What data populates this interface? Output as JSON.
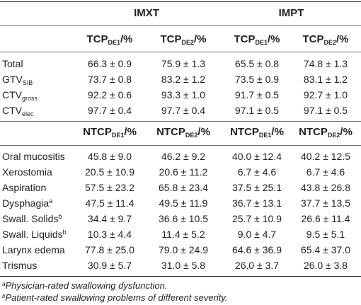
{
  "groups": [
    "IMXT",
    "IMPT"
  ],
  "tcp_header": [
    {
      "main": "TCP",
      "sub": "DE1",
      "tail": "/%"
    },
    {
      "main": "TCP",
      "sub": "DE2",
      "tail": "/%"
    },
    {
      "main": "TCP",
      "sub": "DE1",
      "tail": "/%"
    },
    {
      "main": "TCP",
      "sub": "DE2",
      "tail": "/%"
    }
  ],
  "tcp_rows": [
    {
      "label": "Total",
      "label_sub": "",
      "label_sup": "",
      "values": [
        "66.3 ± 0.9",
        "75.9 ± 1.3",
        "65.5 ± 0.8",
        "74.8 ± 1.3"
      ]
    },
    {
      "label": "GTV",
      "label_sub": "SIB",
      "label_sup": "",
      "values": [
        "73.7 ± 0.8",
        "83.2 ± 1.2",
        "73.5 ± 0.9",
        "83.1 ± 1.2"
      ]
    },
    {
      "label": "CTV",
      "label_sub": "gross",
      "label_sup": "",
      "values": [
        "92.2 ± 0.6",
        "93.3 ± 1.0",
        "91.7 ± 0.5",
        "92.7 ± 1.0"
      ]
    },
    {
      "label": "CTV",
      "label_sub": "elec",
      "label_sup": "",
      "values": [
        "97.7 ± 0.4",
        "97.7 ± 0.4",
        "97.1 ± 0.5",
        "97.1 ± 0.5"
      ]
    }
  ],
  "ntcp_header": [
    {
      "main": "NTCP",
      "sub": "DE1",
      "tail": "/%"
    },
    {
      "main": "NTCP",
      "sub": "DE2",
      "tail": "/%"
    },
    {
      "main": "NTCP",
      "sub": "DE1",
      "tail": "/%"
    },
    {
      "main": "NTCP",
      "sub": "DE2",
      "tail": "/%"
    }
  ],
  "ntcp_rows": [
    {
      "label": "Oral mucositis",
      "label_sub": "",
      "label_sup": "",
      "values": [
        "45.8 ± 9.0",
        "46.2 ± 9.2",
        "40.0 ± 12.4",
        "40.2 ± 12.5"
      ]
    },
    {
      "label": "Xerostomia",
      "label_sub": "",
      "label_sup": "",
      "values": [
        "20.5 ± 10.9",
        "20.6 ± 11.2",
        "6.7 ± 4.6",
        "6.7 ± 4.6"
      ]
    },
    {
      "label": "Aspiration",
      "label_sub": "",
      "label_sup": "",
      "values": [
        "57.5 ± 23.2",
        "65.8 ± 23.4",
        "37.5 ± 25.1",
        "43.8 ± 26.8"
      ]
    },
    {
      "label": "Dysphagia",
      "label_sub": "",
      "label_sup": "a",
      "values": [
        "47.5 ± 11.4",
        "49.5 ± 11.9",
        "36.7 ± 13.1",
        "37.7 ± 13.5"
      ]
    },
    {
      "label": "Swall. Solids",
      "label_sub": "",
      "label_sup": "b",
      "values": [
        "34.4 ± 9.7",
        "36.6 ± 10.5",
        "25.7 ± 10.9",
        "26.6 ± 11.4"
      ]
    },
    {
      "label": "Swall. Liquids",
      "label_sub": "",
      "label_sup": "b",
      "values": [
        "10.3 ± 4.4",
        "11.4 ± 5.2",
        "9.0 ± 4.7",
        "9.5 ± 5.1"
      ]
    },
    {
      "label": "Larynx edema",
      "label_sub": "",
      "label_sup": "",
      "values": [
        "77.8 ± 25.0",
        "79.0 ± 24.9",
        "64.6 ± 36.9",
        "65.4 ± 37.0"
      ]
    },
    {
      "label": "Trismus",
      "label_sub": "",
      "label_sup": "",
      "values": [
        "30.9 ± 5.7",
        "31.0 ± 5.8",
        "26.0 ± 3.7",
        "26.0 ± 3.8"
      ]
    }
  ],
  "footnotes": [
    {
      "mark": "a",
      "text": "Physician-rated swallowing dysfunction."
    },
    {
      "mark": "b",
      "text": "Patient-rated swallowing problems of different severity."
    }
  ]
}
